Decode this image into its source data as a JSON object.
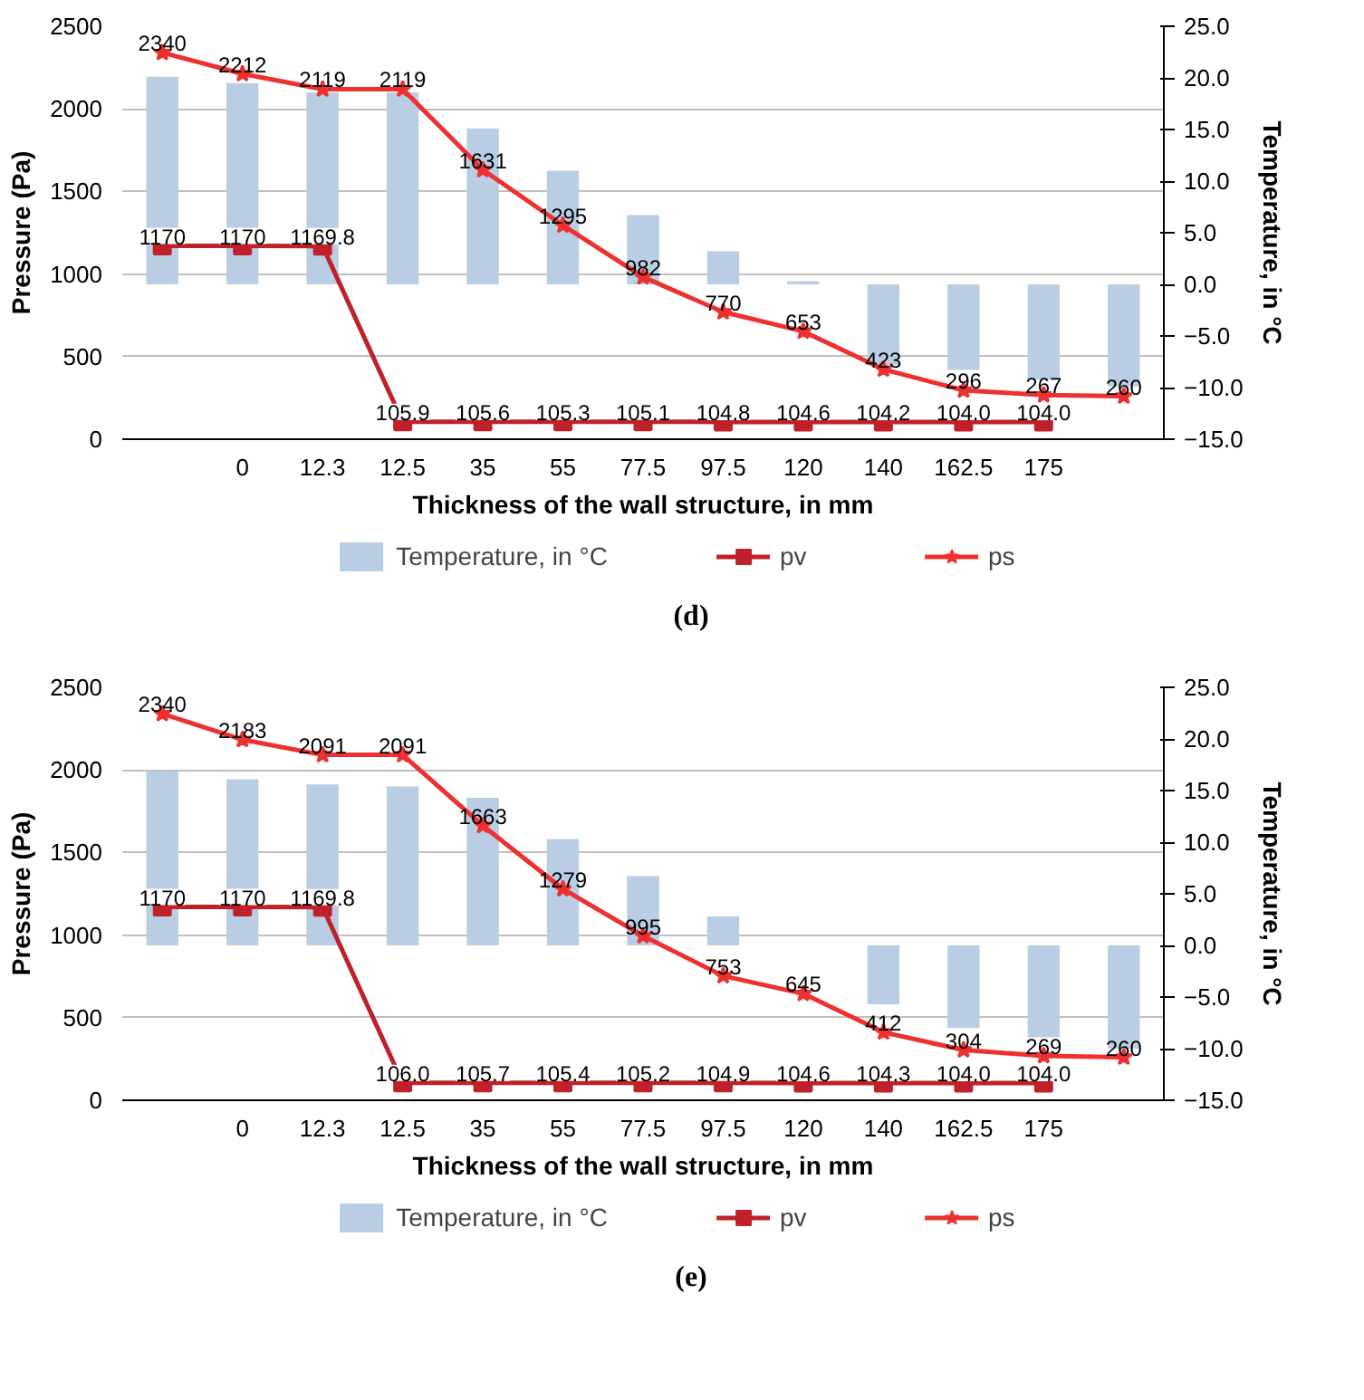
{
  "chart_data": [
    {
      "type": "bar",
      "xlabel": "Thickness of the wall structure, in mm",
      "ylabel": "Pressure (Pa)",
      "y2label": "Temperature, in °C",
      "categories": [
        null,
        "0",
        "12.3",
        "12.5",
        "35",
        "55",
        "77.5",
        "97.5",
        "120",
        "140",
        "162.5",
        "175",
        null
      ],
      "ylim": [
        0,
        2500
      ],
      "yticks": [
        0,
        500,
        1000,
        1500,
        2000,
        2500
      ],
      "y2lim": [
        -15,
        25
      ],
      "y2ticks": [
        {
          "value": -15,
          "label": "−15.0"
        },
        {
          "value": -10,
          "label": "−10.0"
        },
        {
          "value": -5,
          "label": "−5.0"
        },
        {
          "value": 0,
          "label": "0.0"
        },
        {
          "value": 5,
          "label": "5.0"
        },
        {
          "value": 10,
          "label": "10.0"
        },
        {
          "value": 15,
          "label": "15.0"
        },
        {
          "value": 20,
          "label": "20.0"
        },
        {
          "value": 25,
          "label": "25.0"
        }
      ],
      "grid": "y",
      "legend": "bottom",
      "annotations": [
        "(d)"
      ],
      "series": [
        {
          "name": "Temperature, in °C",
          "type": "bar",
          "axis": "y2",
          "color": "#b9cde5",
          "values": [
            20.1,
            19.5,
            18.6,
            18.6,
            15.1,
            11.0,
            6.7,
            3.2,
            0.3,
            -7.8,
            -8.3,
            -9.2,
            -9.9
          ]
        },
        {
          "name": "pv",
          "type": "line",
          "marker": "square",
          "color": "#c0202a",
          "values": [
            1170,
            1170,
            1169.8,
            105.9,
            105.6,
            105.3,
            105.1,
            104.8,
            104.6,
            104.2,
            104.0,
            104.0,
            null
          ],
          "value_labels": [
            "1170",
            "1170",
            "1169.8",
            "105.9",
            "105.6",
            "105.3",
            "105.1",
            "104.8",
            "104.6",
            "104.2",
            "104.0",
            "104.0",
            null
          ]
        },
        {
          "name": "ps",
          "type": "line",
          "marker": "star",
          "color": "#ee3030",
          "values": [
            2340,
            2212,
            2119,
            2119,
            1631,
            1295,
            982,
            770,
            653,
            423,
            296,
            267,
            260
          ],
          "value_labels": [
            "2340",
            "2212",
            "2119",
            "2119",
            "1631",
            "1295",
            "982",
            "770",
            "653",
            "423",
            "296",
            "267",
            "260"
          ]
        }
      ]
    },
    {
      "type": "bar",
      "xlabel": "Thickness of the wall structure, in mm",
      "ylabel": "Pressure (Pa)",
      "y2label": "Temperature, in °C",
      "categories": [
        null,
        "0",
        "12.3",
        "12.5",
        "35",
        "55",
        "77.5",
        "97.5",
        "120",
        "140",
        "162.5",
        "175",
        null
      ],
      "ylim": [
        0,
        2500
      ],
      "yticks": [
        0,
        500,
        1000,
        1500,
        2000,
        2500
      ],
      "y2lim": [
        -15,
        25
      ],
      "y2ticks": [
        {
          "value": -15,
          "label": "−15.0"
        },
        {
          "value": -10,
          "label": "−10.0"
        },
        {
          "value": -5,
          "label": "−5.0"
        },
        {
          "value": 0,
          "label": "0.0"
        },
        {
          "value": 5,
          "label": "5.0"
        },
        {
          "value": 10,
          "label": "10.0"
        },
        {
          "value": 15,
          "label": "15.0"
        },
        {
          "value": 20,
          "label": "20.0"
        },
        {
          "value": 25,
          "label": "25.0"
        }
      ],
      "grid": "y",
      "legend": "bottom",
      "annotations": [
        "(e)"
      ],
      "series": [
        {
          "name": "Temperature, in °C",
          "type": "bar",
          "axis": "y2",
          "color": "#b9cde5",
          "values": [
            16.9,
            16.1,
            15.6,
            15.4,
            14.3,
            10.3,
            6.7,
            2.8,
            null,
            -5.7,
            -8.0,
            -8.9,
            -10.0
          ]
        },
        {
          "name": "pv",
          "type": "line",
          "marker": "square",
          "color": "#c0202a",
          "values": [
            1170,
            1170,
            1169.8,
            106.0,
            105.7,
            105.4,
            105.2,
            104.9,
            104.6,
            104.3,
            104.0,
            104.0,
            null
          ],
          "value_labels": [
            "1170",
            "1170",
            "1169.8",
            "106.0",
            "105.7",
            "105.4",
            "105.2",
            "104.9",
            "104.6",
            "104.3",
            "104.0",
            "104.0",
            null
          ]
        },
        {
          "name": "ps",
          "type": "line",
          "marker": "star",
          "color": "#ee3030",
          "values": [
            2340,
            2183,
            2091,
            2091,
            1663,
            1279,
            995,
            753,
            645,
            412,
            304,
            269,
            260
          ],
          "value_labels": [
            "2340",
            "2183",
            "2091",
            "2091",
            "1663",
            "1279",
            "995",
            "753",
            "645",
            "412",
            "304",
            "269",
            "260"
          ]
        }
      ]
    }
  ]
}
